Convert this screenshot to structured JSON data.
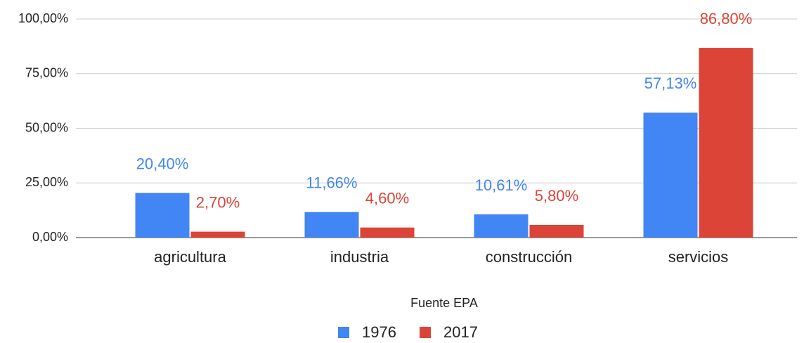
{
  "chart_data": {
    "type": "bar",
    "x_label": "Fuente EPA",
    "categories": [
      "agricultura",
      "industria",
      "construcción",
      "servicios"
    ],
    "series": [
      {
        "name": "1976",
        "color": "#4285f4",
        "values": [
          20.4,
          11.66,
          10.61,
          57.13
        ],
        "value_labels": [
          "20,40%",
          "11,66%",
          "10,61%",
          "57,13%"
        ]
      },
      {
        "name": "2017",
        "color": "#db4437",
        "values": [
          2.7,
          4.6,
          5.8,
          86.8
        ],
        "value_labels": [
          "2,70%",
          "4,60%",
          "5,80%",
          "86,80%"
        ]
      }
    ],
    "ylim": [
      0,
      100
    ],
    "yticks": [
      {
        "value": 0,
        "label": "0,00%"
      },
      {
        "value": 25,
        "label": "25,00%"
      },
      {
        "value": 50,
        "label": "50,00%"
      },
      {
        "value": 75,
        "label": "75,00%"
      },
      {
        "value": 100,
        "label": "100,00%"
      }
    ],
    "grid": true,
    "legend": "bottom"
  }
}
